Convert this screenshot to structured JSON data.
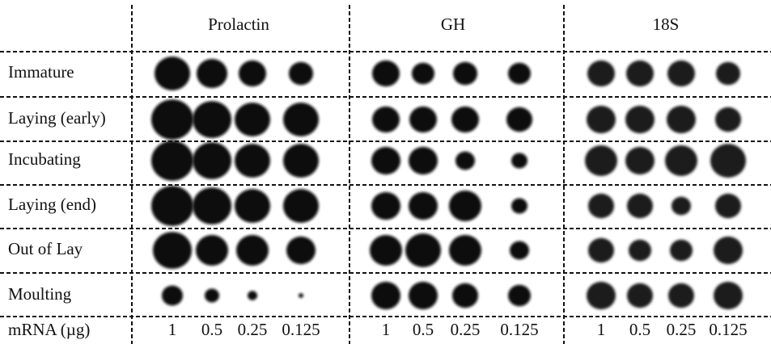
{
  "header": {
    "columns": [
      "Prolactin",
      "GH",
      "18S"
    ]
  },
  "rows": [
    "Immature",
    "Laying (early)",
    "Incubating",
    "Laying (end)",
    "Out of Lay",
    "Moulting"
  ],
  "footer": {
    "label": "mRNA (µg)",
    "groups": [
      [
        "1",
        "0.5",
        "0.25",
        "0.125"
      ],
      [
        "1",
        "0.5",
        "0.25",
        "0.125"
      ],
      [
        "1",
        "0.5",
        "0.25",
        "0.125"
      ]
    ]
  }
}
